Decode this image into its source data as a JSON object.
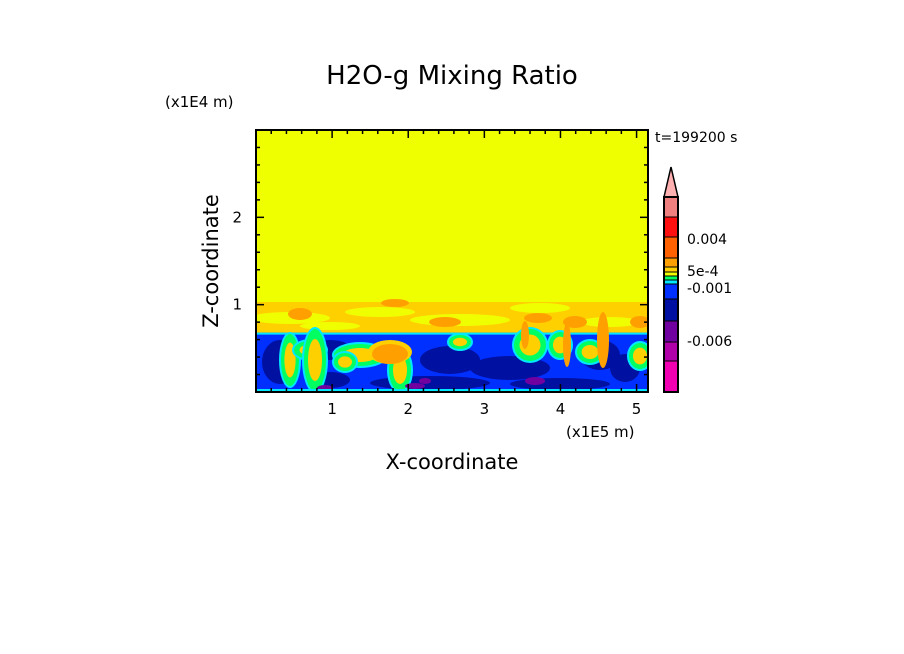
{
  "chart_data": {
    "type": "heatmap",
    "title": "H2O-g Mixing Ratio",
    "xlabel": "X-coordinate",
    "ylabel": "Z-coordinate",
    "x_scale_label": "(x1E5 m)",
    "y_scale_label": "(x1E4 m)",
    "time_label": "t=199200 s",
    "xlim": [
      0,
      5.15
    ],
    "ylim": [
      0,
      3.0
    ],
    "x_ticks": [
      "1",
      "2",
      "3",
      "4",
      "5"
    ],
    "x_tick_values": [
      1,
      2,
      3,
      4,
      5
    ],
    "y_ticks": [
      "1",
      "2"
    ],
    "y_tick_values": [
      1,
      2
    ],
    "fields": {
      "upper_yellow_top": 3.0,
      "orange_band_top": 1.03,
      "blue_layer_top": 0.68
    },
    "colorbar": {
      "labels": [
        "0.004",
        "5e-4",
        "-0.001",
        "-0.006"
      ],
      "colors_top_to_bottom": [
        "#f08080",
        "#ff1010",
        "#ff6000",
        "#ffa000",
        "#ffd000",
        "#f0ff00",
        "#00ff60",
        "#00e8ff",
        "#0030ff",
        "#0010a0",
        "#7000a0",
        "#b000a8",
        "#f000b0"
      ],
      "extend_top_color": "#ffb0b0"
    }
  }
}
